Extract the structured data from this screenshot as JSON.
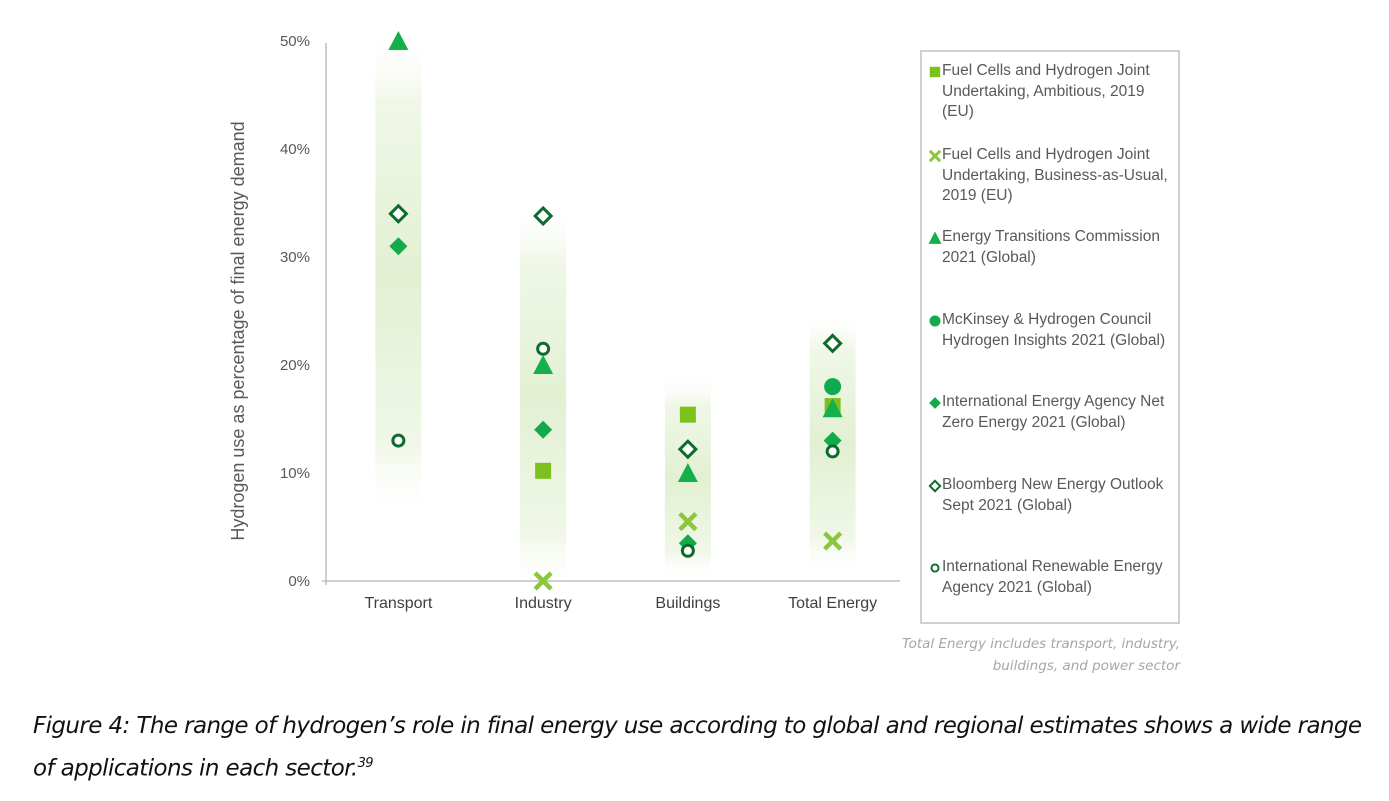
{
  "chart_data": {
    "type": "scatter",
    "title": "",
    "xlabel": "",
    "ylabel": "Hydrogen use as percentage of  final energy demand",
    "ylim": [
      0,
      50
    ],
    "yticks": [
      "0%",
      "10%",
      "20%",
      "30%",
      "40%",
      "50%"
    ],
    "ytick_values": [
      0,
      10,
      20,
      30,
      40,
      50
    ],
    "categories": [
      "Transport",
      "Industry",
      "Buildings",
      "Total Energy"
    ],
    "grid": false,
    "legend_position": "right",
    "series": [
      {
        "name": "Fuel Cells and Hydrogen Joint Undertaking, Ambitious, 2019 (EU)",
        "marker": "square",
        "color": "#7dc11f",
        "values": [
          null,
          10.2,
          15.4,
          16.2
        ]
      },
      {
        "name": "Fuel Cells and Hydrogen Joint Undertaking, Business-as-Usual, 2019  (EU)",
        "marker": "x",
        "color": "#8cc63f",
        "values": [
          null,
          0,
          5.5,
          3.7
        ]
      },
      {
        "name": "Energy Transitions Commission 2021 (Global)",
        "marker": "triangle",
        "color": "#13b04b",
        "values": [
          50,
          20,
          10,
          16
        ]
      },
      {
        "name": "McKinsey & Hydrogen Council Hydrogen Insights 2021 (Global)",
        "marker": "circle",
        "color": "#12aa4f",
        "values": [
          null,
          null,
          null,
          18
        ]
      },
      {
        "name": "International Energy Agency Net Zero Energy 2021 (Global)",
        "marker": "diamond",
        "color": "#14a94a",
        "values": [
          31,
          14,
          3.5,
          13
        ]
      },
      {
        "name": "Bloomberg New Energy Outlook Sept 2021 (Global)",
        "marker": "open-diamond",
        "color": "#0e6b2e",
        "values": [
          34,
          33.8,
          12.2,
          22
        ]
      },
      {
        "name": "International Renewable Energy Agency 2021 (Global)",
        "marker": "open-circle",
        "color": "#0e6b2e",
        "values": [
          13,
          21.5,
          2.8,
          12
        ]
      }
    ],
    "ranges": [
      {
        "category": "Transport",
        "min": 7,
        "max": 50
      },
      {
        "category": "Industry",
        "min": 0,
        "max": 34
      },
      {
        "category": "Buildings",
        "min": 1,
        "max": 18
      },
      {
        "category": "Total Energy",
        "min": 1.5,
        "max": 24
      }
    ],
    "annotation": "Total Energy includes transport, industry, buildings, and power sector"
  },
  "legend": {
    "items": [
      {
        "text": "Fuel Cells and Hydrogen Joint Undertaking, Ambitious, 2019 (EU)",
        "marker": "square",
        "color": "#7dc11f"
      },
      {
        "text": "Fuel Cells and Hydrogen Joint Undertaking, Business-as-Usual, 2019  (EU)",
        "marker": "x",
        "color": "#8cc63f"
      },
      {
        "text": "Energy Transitions Commission 2021 (Global)",
        "marker": "triangle",
        "color": "#13b04b"
      },
      {
        "text": "McKinsey & Hydrogen Council Hydrogen Insights 2021 (Global)",
        "marker": "circle",
        "color": "#12aa4f"
      },
      {
        "text": "International Energy Agency Net Zero Energy 2021 (Global)",
        "marker": "diamond",
        "color": "#14a94a"
      },
      {
        "text": "Bloomberg New Energy Outlook Sept 2021 (Global)",
        "marker": "open-diamond",
        "color": "#0e6b2e"
      },
      {
        "text": "International Renewable Energy Agency 2021 (Global)",
        "marker": "open-circle",
        "color": "#0e6b2e"
      }
    ]
  },
  "note": "Total Energy includes transport, industry, buildings, and power sector",
  "caption": {
    "text": "Figure 4: The range of hydrogen’s role in final energy use according to global and regional estimates shows a wide range of applications in each sector.",
    "footnote": "39"
  }
}
